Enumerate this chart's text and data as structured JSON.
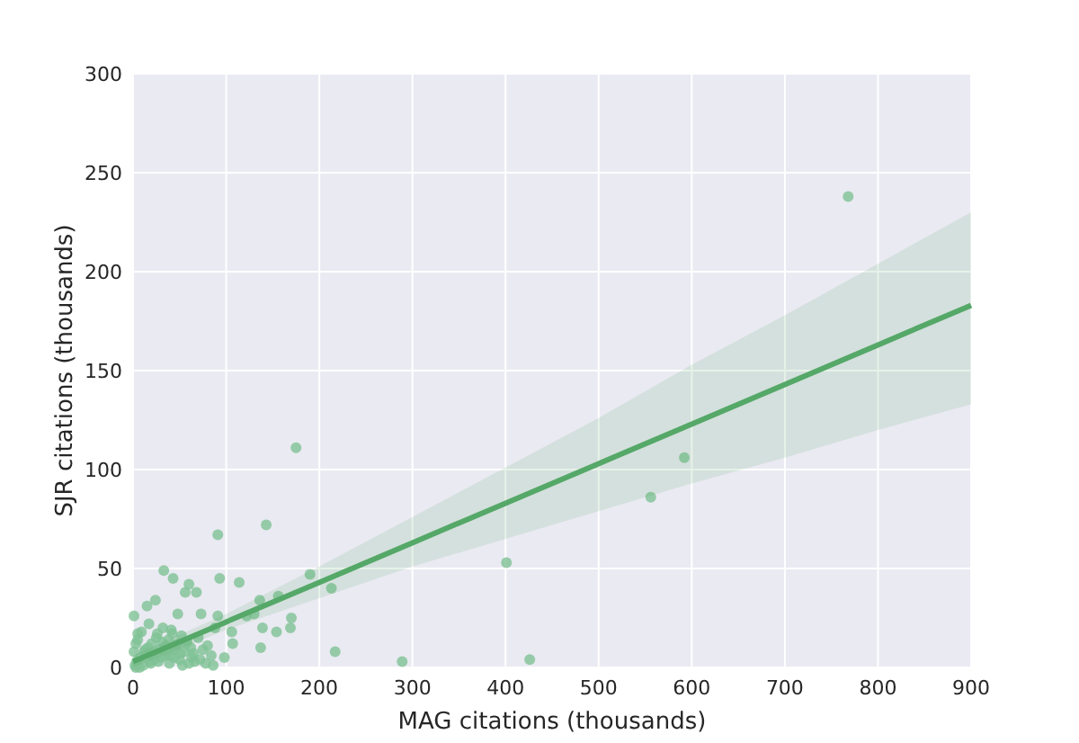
{
  "chart_data": {
    "type": "scatter",
    "xlabel": "MAG citations (thousands)",
    "ylabel": "SJR citations (thousands)",
    "xlim": [
      0,
      900
    ],
    "ylim": [
      0,
      300
    ],
    "xticks": [
      0,
      100,
      200,
      300,
      400,
      500,
      600,
      700,
      800,
      900
    ],
    "yticks": [
      0,
      50,
      100,
      150,
      200,
      250,
      300
    ],
    "grid": true,
    "series": [
      {
        "color": "#7fc295",
        "marker": "circle",
        "x": [
          768,
          175,
          592,
          556,
          143,
          91,
          401,
          426,
          289,
          217,
          213,
          190,
          114,
          93,
          33,
          43,
          60,
          68,
          56,
          156,
          136,
          170,
          169,
          154,
          139,
          137,
          107,
          98,
          86,
          1,
          15,
          24,
          48,
          73,
          91,
          122,
          130,
          106,
          88,
          2,
          4,
          8,
          12,
          16,
          18,
          20,
          22,
          25,
          28,
          30,
          32,
          35,
          38,
          40,
          42,
          45,
          48,
          50,
          52,
          55,
          58,
          60,
          62,
          65,
          70,
          75,
          80,
          5,
          9,
          13,
          17,
          26,
          31,
          36,
          41,
          46,
          51,
          57,
          63,
          3,
          7,
          11,
          19,
          23,
          27,
          34,
          39,
          44,
          53,
          66,
          72,
          78,
          84,
          1,
          3,
          5
        ],
        "values": [
          238,
          111,
          106,
          86,
          72,
          67,
          53,
          4,
          3,
          8,
          40,
          47,
          43,
          45,
          49,
          45,
          42,
          38,
          38,
          36,
          34,
          25,
          20,
          18,
          20,
          10,
          12,
          5,
          1,
          26,
          31,
          34,
          27,
          27,
          26,
          26,
          27,
          18,
          20,
          1,
          3,
          5,
          8,
          10,
          3,
          12,
          7,
          15,
          9,
          5,
          20,
          11,
          14,
          6,
          17,
          9,
          12,
          4,
          16,
          8,
          13,
          2,
          10,
          7,
          15,
          9,
          11,
          14,
          18,
          9,
          22,
          17,
          13,
          8,
          19,
          10,
          7,
          12,
          5,
          0,
          0,
          1,
          2,
          4,
          3,
          6,
          2,
          5,
          1,
          3,
          4,
          2,
          6,
          8,
          12,
          17
        ]
      },
      {
        "type": "line",
        "color": "#55a868",
        "x": [
          0,
          100,
          200,
          300,
          400,
          500,
          600,
          700,
          800,
          900
        ],
        "values": [
          3,
          23,
          43,
          63,
          83,
          103,
          123,
          143,
          163,
          183
        ],
        "lower": [
          0,
          19,
          35,
          51,
          65,
          79,
          93,
          106,
          120,
          133
        ],
        "upper": [
          6,
          27,
          51,
          76,
          101,
          126,
          153,
          178,
          204,
          230
        ]
      }
    ]
  }
}
